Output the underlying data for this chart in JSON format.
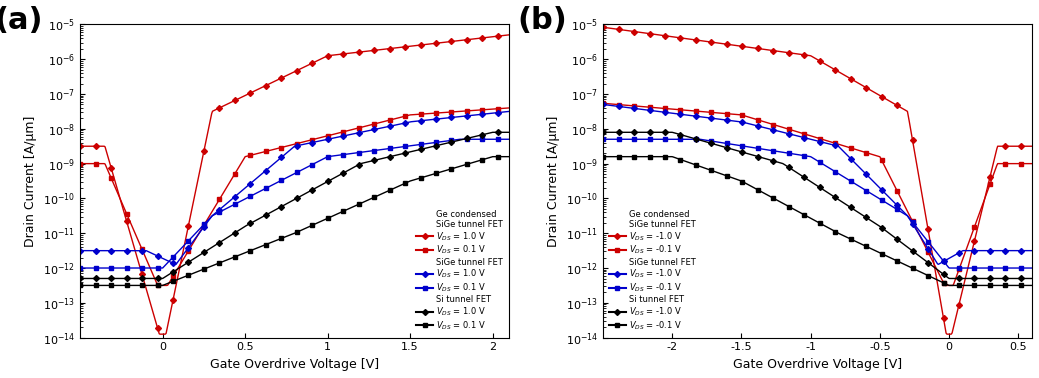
{
  "panel_a": {
    "title": "(a)",
    "xlabel": "Gate Overdrive Voltage [V]",
    "ylabel": "Drain Current [A/μm]",
    "xlim": [
      -0.5,
      2.1
    ],
    "ylim_log": [
      -14,
      -5
    ],
    "xticks": [
      0,
      0.5,
      1.0,
      1.5,
      2.0
    ],
    "xticklabels": [
      "0",
      "0.5",
      "1",
      "1.5",
      "2"
    ]
  },
  "panel_b": {
    "title": "(b)",
    "xlabel": "Gate Overdrive Voltage [V]",
    "ylabel": "Drain Current [A/μm]",
    "xlim": [
      -2.5,
      0.6
    ],
    "ylim_log": [
      -14,
      -5
    ],
    "xticks": [
      -2.0,
      -1.5,
      -1.0,
      -0.5,
      0,
      0.5
    ],
    "xticklabels": [
      "-2",
      "-1.5",
      "-1",
      "-0.5",
      "0",
      "0.5"
    ]
  },
  "background_color": "#ffffff",
  "panel_label_fontsize": 22,
  "axis_label_fontsize": 9,
  "legend_fontsize": 6,
  "tick_fontsize": 8
}
